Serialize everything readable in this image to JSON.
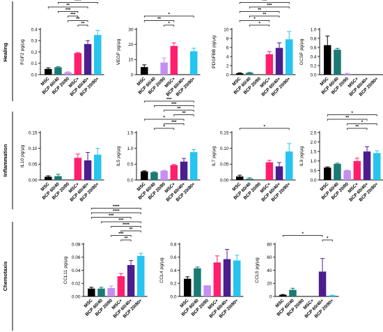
{
  "categories": [
    "MSC",
    "BCP 60/40",
    "BCP 20/80",
    "MSC+",
    "BCP 60/40+",
    "BCP 20/80+"
  ],
  "colors": [
    "#000000",
    "#1a7a74",
    "#c58ff0",
    "#ff1f6e",
    "#4b1d8f",
    "#26c4ef"
  ],
  "sections": [
    {
      "label": "Healing"
    },
    {
      "label": "Inflammation"
    },
    {
      "label": "Chemotaxis"
    }
  ],
  "chart_data": [
    {
      "type": "bar",
      "ylabel": "FGF2 pg/μg",
      "ylim": [
        0,
        0.4
      ],
      "ticks": [
        "0.0",
        "0.1",
        "0.2",
        "0.3",
        "0.4"
      ],
      "values": [
        0.05,
        0.065,
        0.02,
        0.19,
        0.27,
        0.35
      ],
      "errors": [
        0.01,
        0.005,
        0.005,
        0.005,
        0.03,
        0.04
      ],
      "significance": [
        {
          "from": 3,
          "to": 4,
          "stars": "**"
        },
        {
          "from": 2,
          "to": 4,
          "stars": "**"
        },
        {
          "from": 2,
          "to": 3,
          "stars": "***"
        },
        {
          "from": 1,
          "to": 3,
          "stars": "***"
        },
        {
          "from": 0,
          "to": 4,
          "stars": "**"
        },
        {
          "from": 1,
          "to": 5,
          "stars": "****"
        },
        {
          "from": 0,
          "to": 5,
          "stars": "****"
        },
        {
          "from": 0,
          "to": 5,
          "stars": "****"
        }
      ]
    },
    {
      "type": "bar",
      "ylabel": "VEGF pg/μg",
      "ylim": [
        0,
        30
      ],
      "ticks": [
        "0",
        "10",
        "20",
        "30"
      ],
      "values": [
        5,
        0,
        8,
        19,
        0,
        15.5
      ],
      "errors": [
        1.5,
        0,
        3,
        2,
        0,
        2
      ],
      "significance": [
        {
          "from": 2,
          "to": 3,
          "stars": "*"
        },
        {
          "from": 0,
          "to": 3,
          "stars": "**"
        },
        {
          "from": 0,
          "to": 5,
          "stars": "*"
        }
      ]
    },
    {
      "type": "bar",
      "ylabel": "PDGFBB pg/μg",
      "ylim": [
        0,
        10
      ],
      "ticks": [
        "0",
        "2",
        "4",
        "6",
        "8",
        "10"
      ],
      "values": [
        0.3,
        0.4,
        0,
        4.5,
        5.9,
        7.8
      ],
      "errors": [
        0.1,
        0.1,
        0,
        0.6,
        1.1,
        1.7
      ],
      "significance": [
        {
          "from": 1,
          "to": 3,
          "stars": "*"
        },
        {
          "from": 0,
          "to": 3,
          "stars": "*"
        },
        {
          "from": 1,
          "to": 4,
          "stars": "**"
        },
        {
          "from": 0,
          "to": 4,
          "stars": "**"
        },
        {
          "from": 1,
          "to": 5,
          "stars": "***"
        },
        {
          "from": 0,
          "to": 5,
          "stars": "***"
        }
      ]
    },
    {
      "type": "bar",
      "ylabel": "GCSF pg/μg",
      "ylim": [
        0,
        1.0
      ],
      "ticks": [
        "0.0",
        "0.2",
        "0.4",
        "0.6",
        "0.8",
        "1.0"
      ],
      "values": [
        0.65,
        0.55,
        0.02,
        0,
        0,
        0
      ],
      "errors": [
        0.2,
        0.03,
        0.01,
        0,
        0,
        0
      ],
      "significance": []
    },
    {
      "type": "bar",
      "ylabel": "IL10 pg/μg",
      "ylim": [
        0,
        0.15
      ],
      "ticks": [
        "0.00",
        "0.05",
        "0.10",
        "0.15"
      ],
      "values": [
        0.01,
        0.012,
        0,
        0.07,
        0.062,
        0.08
      ],
      "errors": [
        0.003,
        0.006,
        0,
        0.012,
        0.025,
        0.02
      ],
      "significance": []
    },
    {
      "type": "bar",
      "ylabel": "IL5 pg/μg",
      "ylim": [
        0,
        1.5
      ],
      "ticks": [
        "0.0",
        "0.5",
        "1.0",
        "1.5"
      ],
      "values": [
        0.27,
        0.24,
        0.29,
        0.47,
        0.58,
        0.88
      ],
      "errors": [
        0.02,
        0.02,
        0.02,
        0.02,
        0.1,
        0.08
      ],
      "significance": [
        {
          "from": 1,
          "to": 3,
          "stars": "*"
        },
        {
          "from": 2,
          "to": 4,
          "stars": "***"
        },
        {
          "from": 0,
          "to": 4,
          "stars": "*"
        },
        {
          "from": 3,
          "to": 5,
          "stars": "**"
        },
        {
          "from": 2,
          "to": 5,
          "stars": "**"
        },
        {
          "from": 1,
          "to": 5,
          "stars": "***"
        },
        {
          "from": 0,
          "to": 5,
          "stars": "***"
        }
      ]
    },
    {
      "type": "bar",
      "ylabel": "IL7 pg/μg",
      "ylim": [
        0,
        0.15
      ],
      "ticks": [
        "0.00",
        "0.05",
        "0.10",
        "0.15"
      ],
      "values": [
        0.011,
        0.004,
        0,
        0.056,
        0.043,
        0.09
      ],
      "errors": [
        0.004,
        0.003,
        0,
        0.006,
        0.012,
        0.025
      ],
      "significance": [
        {
          "from": 0,
          "to": 5,
          "stars": "*"
        }
      ]
    },
    {
      "type": "bar",
      "ylabel": "IL9 pg/μg",
      "ylim": [
        0,
        2.5
      ],
      "ticks": [
        "0.0",
        "0.5",
        "1.0",
        "1.5",
        "2.0",
        "2.5"
      ],
      "values": [
        0.65,
        0.85,
        0.5,
        1.0,
        1.5,
        1.42
      ],
      "errors": [
        0.04,
        0.04,
        0.02,
        0.15,
        0.25,
        0.12
      ],
      "significance": [
        {
          "from": 2,
          "to": 4,
          "stars": "**"
        },
        {
          "from": 2,
          "to": 5,
          "stars": "*"
        },
        {
          "from": 0,
          "to": 4,
          "stars": "**"
        },
        {
          "from": 0,
          "to": 5,
          "stars": "*"
        }
      ]
    },
    {
      "type": "bar",
      "ylabel": "CCL11 pg/μg",
      "ylim": [
        0,
        0.08
      ],
      "ticks": [
        "0.00",
        "0.02",
        "0.04",
        "0.06",
        "0.08"
      ],
      "values": [
        0.012,
        0.012,
        0.013,
        0.031,
        0.048,
        0.062
      ],
      "errors": [
        0.002,
        0.002,
        0.003,
        0.004,
        0.007,
        0.004
      ],
      "significance": [
        {
          "from": 3,
          "to": 4,
          "stars": "**"
        },
        {
          "from": 2,
          "to": 4,
          "stars": "***"
        },
        {
          "from": 3,
          "to": 5,
          "stars": "**"
        },
        {
          "from": 2,
          "to": 5,
          "stars": "****"
        },
        {
          "from": 1,
          "to": 5,
          "stars": "***"
        },
        {
          "from": 0,
          "to": 4,
          "stars": "***"
        },
        {
          "from": 0,
          "to": 5,
          "stars": "****"
        },
        {
          "from": 0,
          "to": 5,
          "stars": "****"
        }
      ]
    },
    {
      "type": "bar",
      "ylabel": "CCL4 pg/μg",
      "ylim": [
        0,
        0.8
      ],
      "ticks": [
        "0.0",
        "0.2",
        "0.4",
        "0.6",
        "0.8"
      ],
      "values": [
        0.27,
        0.43,
        0.17,
        0.52,
        0.57,
        0.55
      ],
      "errors": [
        0.03,
        0.02,
        0,
        0.1,
        0.15,
        0.08
      ],
      "significance": []
    },
    {
      "type": "bar",
      "ylabel": "CCL5 pg/μg",
      "ylim": [
        0,
        80
      ],
      "ticks": [
        "0",
        "20",
        "40",
        "60",
        "80"
      ],
      "values": [
        2.5,
        10,
        0,
        0,
        38,
        1.5
      ],
      "errors": [
        0.5,
        2.5,
        0,
        0,
        20,
        0.5
      ],
      "significance": [
        {
          "from": 4,
          "to": 5,
          "stars": "*"
        },
        {
          "from": 0,
          "to": 4,
          "stars": "*"
        }
      ]
    }
  ]
}
